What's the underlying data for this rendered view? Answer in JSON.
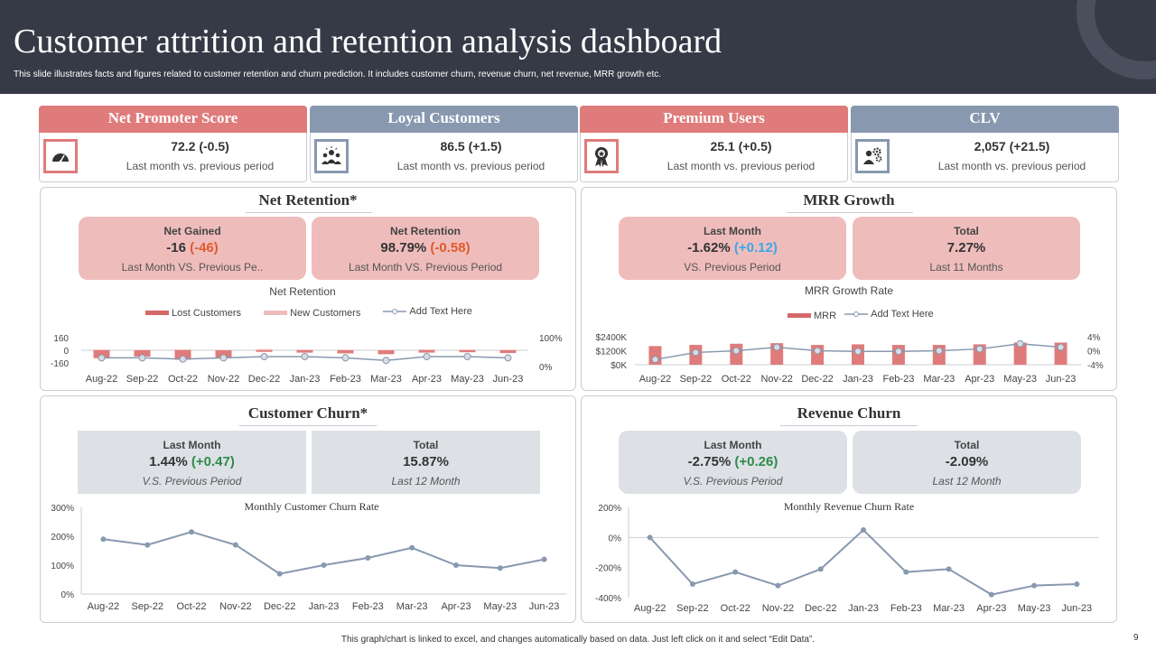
{
  "header": {
    "title": "Customer attrition and retention analysis dashboard",
    "subtitle": "This slide illustrates facts and figures related to customer retention and churn prediction. It includes customer churn, revenue churn, net revenue, MRR  growth etc."
  },
  "kpis": [
    {
      "title": "Net Promoter Score",
      "value": "72.2 (-0.5)",
      "sub": "Last month vs. previous period",
      "icon": "gauge-icon",
      "accent": "#e07b7b"
    },
    {
      "title": "Loyal Customers",
      "value": "86.5 (+1.5)",
      "sub": "Last month vs. previous period",
      "icon": "team-icon",
      "accent": "#8898af"
    },
    {
      "title": "Premium Users",
      "value": "25.1 (+0.5)",
      "sub": "Last month vs. previous period",
      "icon": "award-ribbon-icon",
      "accent": "#e07b7b"
    },
    {
      "title": "CLV",
      "value": "2,057 (+21.5)",
      "sub": "Last month vs. previous period",
      "icon": "user-gears-icon",
      "accent": "#8898af"
    }
  ],
  "net_retention": {
    "title": "Net Retention*",
    "cards": [
      {
        "label": "Net Gained",
        "value": "-16",
        "delta": "(-46)",
        "sub": "Last Month VS. Previous Pe.."
      },
      {
        "label": "Net Retention",
        "value": "98.79%",
        "delta": "(-0.58)",
        "sub": "Last Month VS. Previous Period"
      }
    ],
    "chart_title": "Net Retention",
    "legend": [
      "Lost Customers",
      "New Customers",
      "Add Text Here"
    ]
  },
  "mrr_growth": {
    "title": "MRR  Growth",
    "cards": [
      {
        "label": "Last Month",
        "value": "-1.62%",
        "delta": "(+0.12)",
        "sub": "VS. Previous Period"
      },
      {
        "label": "Total",
        "value": "7.27%",
        "sub": "Last 11 Months"
      }
    ],
    "chart_title": "MRR Growth Rate",
    "legend": [
      "MRR",
      "Add Text Here"
    ]
  },
  "customer_churn": {
    "title": "Customer Churn*",
    "cards": [
      {
        "label": "Last Month",
        "value": "1.44%",
        "delta": "(+0.47)",
        "sub": "V.S. Previous Period"
      },
      {
        "label": "Total",
        "value": "15.87%",
        "sub": "Last 12 Month"
      }
    ],
    "chart_title": "Monthly Customer Churn Rate"
  },
  "revenue_churn": {
    "title": "Revenue Churn",
    "cards": [
      {
        "label": "Last Month",
        "value": "-2.75%",
        "delta": "(+0.26)",
        "sub": "V.S. Previous Period"
      },
      {
        "label": "Total",
        "value": "-2.09%",
        "sub": "Last 12 Month"
      }
    ],
    "chart_title": "Monthly Revenue Churn Rate"
  },
  "chart_data": [
    {
      "type": "bar",
      "title": "Net Retention",
      "categories": [
        "Aug-22",
        "Sep-22",
        "Oct-22",
        "Nov-22",
        "Dec-22",
        "Jan-23",
        "Feb-23",
        "Mar-23",
        "Apr-23",
        "May-23",
        "Jun-23"
      ],
      "series": [
        {
          "name": "Lost Customers",
          "values": [
            -100,
            -80,
            -120,
            -100,
            -20,
            -30,
            -40,
            -50,
            -30,
            -25,
            -35
          ]
        },
        {
          "name": "New Customers",
          "values": [
            10,
            8,
            12,
            6,
            15,
            10,
            8,
            6,
            12,
            10,
            8
          ]
        },
        {
          "name": "Add Text Here",
          "axis": "right",
          "values": [
            0.2,
            0.2,
            0.15,
            0.2,
            0.25,
            0.25,
            0.2,
            0.1,
            0.25,
            0.25,
            0.2
          ]
        }
      ],
      "yticks_left": [
        "160",
        "0",
        "-160"
      ],
      "yticks_right": [
        "100%",
        "0%"
      ],
      "ylim_left": [
        -160,
        160
      ],
      "ylim_right": [
        0,
        1
      ],
      "legend_position": "top"
    },
    {
      "type": "bar",
      "title": "MRR Growth Rate",
      "categories": [
        "Aug-22",
        "Sep-22",
        "Oct-22",
        "Nov-22",
        "Dec-22",
        "Jan-23",
        "Feb-23",
        "Mar-23",
        "Apr-23",
        "May-23",
        "Jun-23"
      ],
      "series": [
        {
          "name": "MRR",
          "values": [
            1600,
            1700,
            1800,
            1850,
            1700,
            1750,
            1700,
            1700,
            1750,
            1900,
            1900
          ]
        },
        {
          "name": "Add Text Here",
          "axis": "right",
          "values": [
            -2.5,
            -0.5,
            0,
            1,
            0,
            -0.2,
            -0.2,
            0,
            0.5,
            2,
            1
          ]
        }
      ],
      "yticks_left": [
        "$2400K",
        "$1200K",
        "$0K"
      ],
      "yticks_right": [
        "4%",
        "0%",
        "-4%"
      ],
      "ylim_left": [
        0,
        2400
      ],
      "ylim_right": [
        -4,
        4
      ],
      "legend_position": "top"
    },
    {
      "type": "line",
      "title": "Monthly Customer Churn Rate",
      "categories": [
        "Aug-22",
        "Sep-22",
        "Oct-22",
        "Nov-22",
        "Dec-22",
        "Jan-23",
        "Feb-23",
        "Mar-23",
        "Apr-23",
        "May-23",
        "Jun-23"
      ],
      "series": [
        {
          "values": [
            190,
            170,
            215,
            170,
            70,
            100,
            125,
            160,
            100,
            90,
            120
          ]
        }
      ],
      "yticks": [
        "300%",
        "200%",
        "100%",
        "0%"
      ],
      "ylim": [
        0,
        300
      ]
    },
    {
      "type": "line",
      "title": "Monthly Revenue Churn Rate",
      "categories": [
        "Aug-22",
        "Sep-22",
        "Oct-22",
        "Nov-22",
        "Dec-22",
        "Jan-23",
        "Feb-23",
        "Mar-23",
        "Apr-23",
        "May-23",
        "Jun-23"
      ],
      "series": [
        {
          "values": [
            0,
            -310,
            -230,
            -320,
            -210,
            50,
            -230,
            -210,
            -380,
            -320,
            -310
          ]
        }
      ],
      "yticks": [
        "200%",
        "0%",
        "-200%",
        "-400%"
      ],
      "ylim": [
        -400,
        200
      ]
    }
  ],
  "colors": {
    "header_bg": "#363a47",
    "accent_red": "#e07b7b",
    "accent_blue": "#8898af",
    "pink_card": "#efbcbc",
    "gray_card": "#dde1e6",
    "line": "#8898af",
    "negative": "#e05a2b",
    "positive_blue": "#3ba8e6",
    "positive_green": "#2e8b4a"
  },
  "footer": {
    "note": "This graph/chart is linked to excel, and changes automatically based on data. Just left click on it and select “Edit Data”.",
    "page": "9"
  }
}
